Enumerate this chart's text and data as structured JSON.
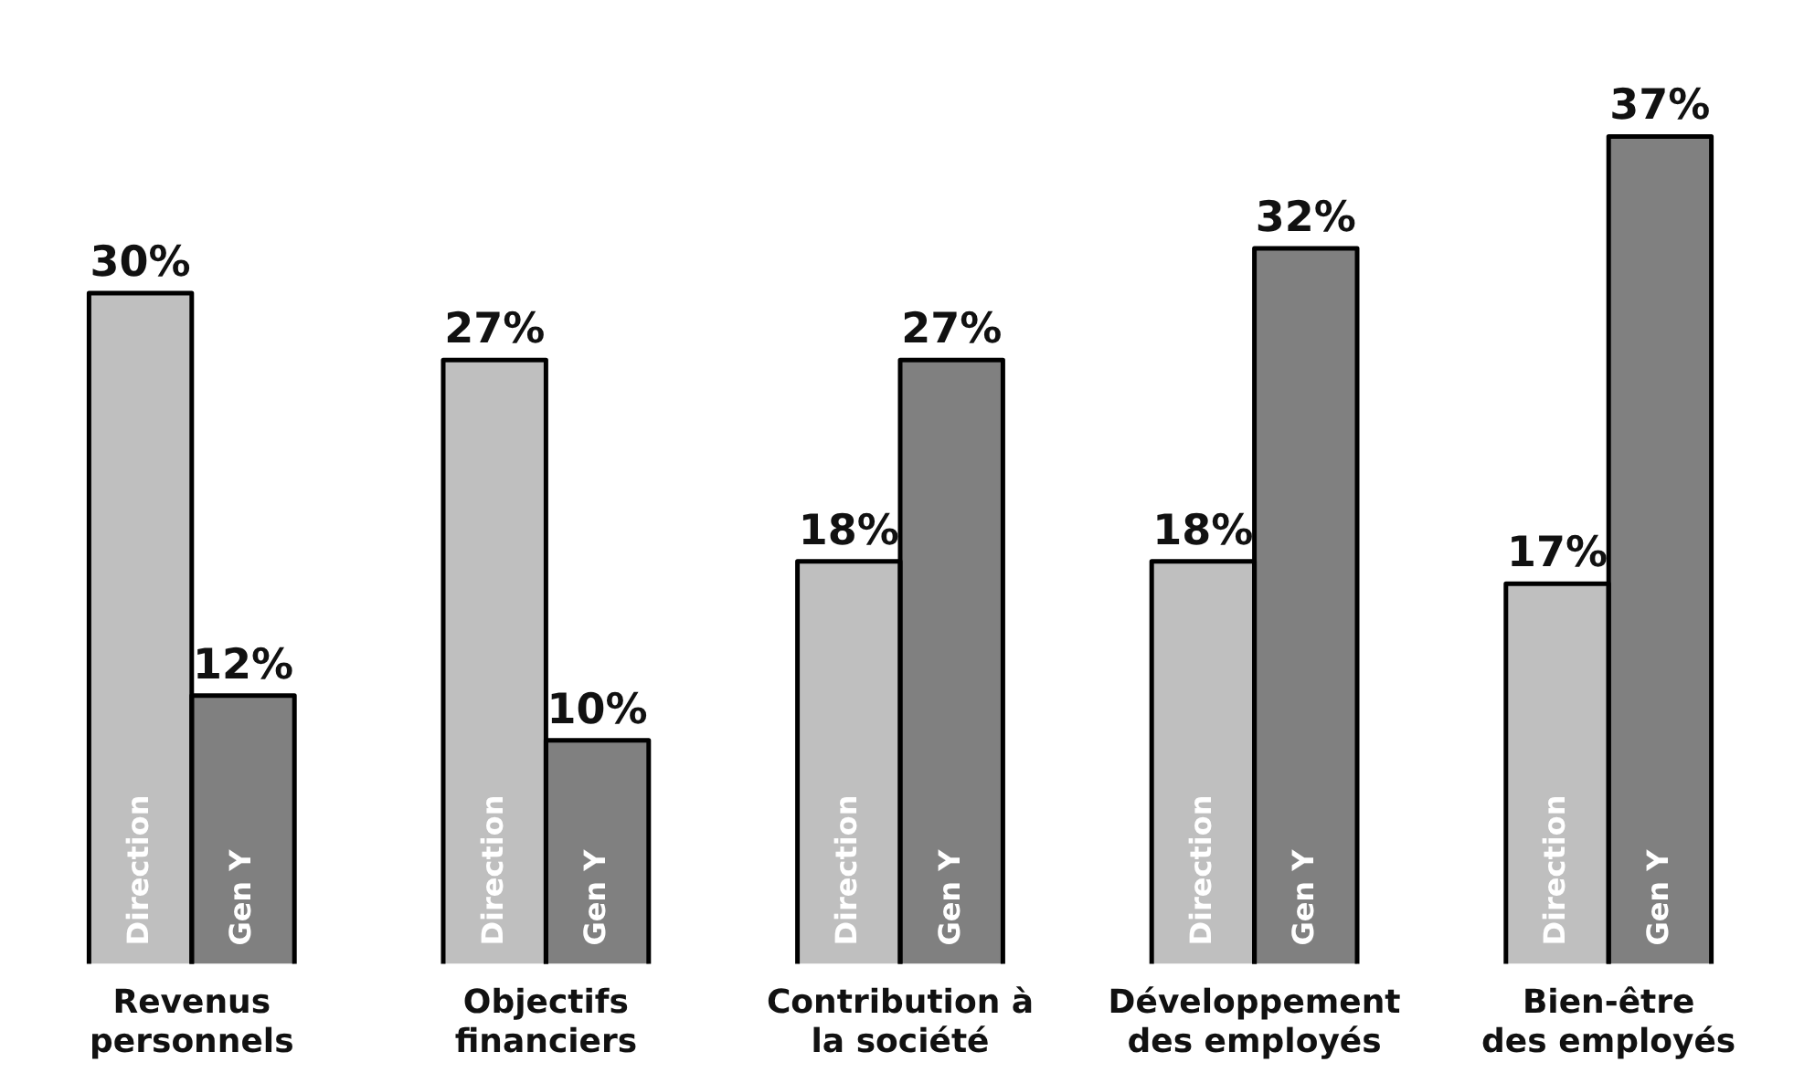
{
  "chart_data": {
    "type": "bar",
    "categories": [
      "Revenus\npersonnels",
      "Objectifs\nfinanciers",
      "Contribution à\nla société",
      "Développement\ndes employés",
      "Bien-être\ndes employés"
    ],
    "series": [
      {
        "name": "Direction",
        "color": "#bfbfbf",
        "values": [
          30,
          27,
          18,
          18,
          17
        ],
        "value_labels": [
          "30%",
          "27%",
          "18%",
          "18%",
          "17%"
        ]
      },
      {
        "name": "Gen Y",
        "color": "#808080",
        "values": [
          12,
          10,
          27,
          32,
          37
        ],
        "value_labels": [
          "12%",
          "10%",
          "27%",
          "32%",
          "37%"
        ]
      }
    ],
    "legend": false,
    "grid": false,
    "tick_labels": "x"
  }
}
